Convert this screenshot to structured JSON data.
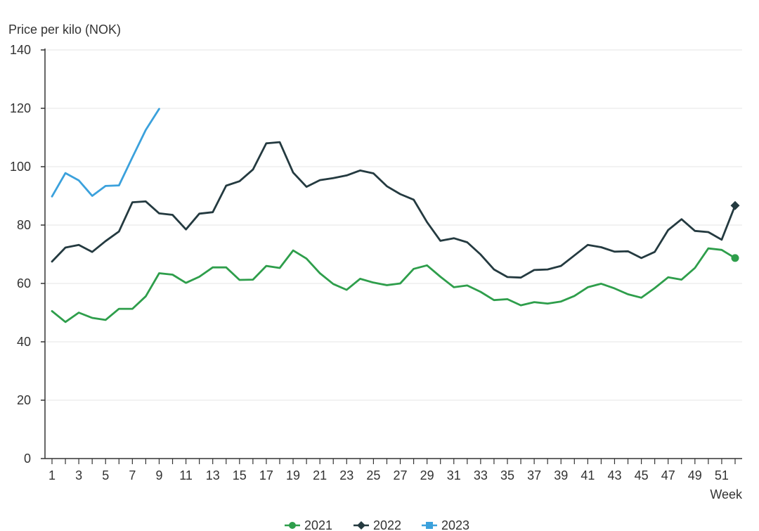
{
  "chart_data": {
    "type": "line",
    "ylabel": "Price per kilo (NOK)",
    "xlabel": "Week",
    "ylim": [
      0,
      140
    ],
    "xlim": [
      1,
      52
    ],
    "yticks": [
      0,
      20,
      40,
      60,
      80,
      100,
      120,
      140
    ],
    "xticks": [
      1,
      3,
      5,
      7,
      9,
      11,
      13,
      15,
      17,
      19,
      21,
      23,
      25,
      27,
      29,
      31,
      33,
      35,
      37,
      39,
      41,
      43,
      45,
      47,
      49,
      51
    ],
    "grid": "horizontal",
    "legend_position": "bottom-center",
    "series": [
      {
        "name": "2021",
        "color": "#2e9e4b",
        "marker": "circle",
        "x": [
          1,
          2,
          3,
          4,
          5,
          6,
          7,
          8,
          9,
          10,
          11,
          12,
          13,
          14,
          15,
          16,
          17,
          18,
          19,
          20,
          21,
          22,
          23,
          24,
          25,
          26,
          27,
          28,
          29,
          30,
          31,
          32,
          33,
          34,
          35,
          36,
          37,
          38,
          39,
          40,
          41,
          42,
          43,
          44,
          45,
          46,
          47,
          48,
          49,
          50,
          51,
          52
        ],
        "values": [
          50.5,
          46.8,
          50.0,
          48.2,
          47.5,
          51.3,
          51.3,
          55.6,
          63.5,
          63.0,
          60.2,
          62.3,
          65.5,
          65.5,
          61.2,
          61.3,
          66.0,
          65.3,
          71.3,
          68.5,
          63.5,
          59.8,
          57.8,
          61.6,
          60.3,
          59.4,
          60.0,
          65.0,
          66.2,
          62.3,
          58.7,
          59.3,
          57.1,
          54.3,
          54.6,
          52.5,
          53.6,
          53.1,
          53.8,
          55.7,
          58.7,
          59.9,
          58.3,
          56.3,
          55.1,
          58.4,
          62.1,
          61.3,
          65.3,
          72.0,
          71.5,
          68.7
        ]
      },
      {
        "name": "2022",
        "color": "#243a40",
        "marker": "diamond",
        "x": [
          1,
          2,
          3,
          4,
          5,
          6,
          7,
          8,
          9,
          10,
          11,
          12,
          13,
          14,
          15,
          16,
          17,
          18,
          19,
          20,
          21,
          22,
          23,
          24,
          25,
          26,
          27,
          28,
          29,
          30,
          31,
          32,
          33,
          34,
          35,
          36,
          37,
          38,
          39,
          40,
          41,
          42,
          43,
          44,
          45,
          46,
          47,
          48,
          49,
          50,
          51,
          52
        ],
        "values": [
          67.5,
          72.3,
          73.2,
          70.8,
          74.5,
          77.8,
          87.8,
          88.1,
          84.0,
          83.5,
          78.5,
          83.9,
          84.4,
          93.5,
          95.0,
          99.0,
          108.0,
          108.4,
          98.0,
          93.1,
          95.4,
          96.1,
          97.0,
          98.7,
          97.7,
          93.3,
          90.6,
          88.7,
          81.0,
          74.6,
          75.5,
          74.1,
          69.9,
          64.8,
          62.2,
          62.0,
          64.6,
          64.8,
          66.0,
          69.6,
          73.2,
          72.4,
          70.9,
          71.0,
          68.7,
          70.8,
          78.3,
          82.0,
          78.0,
          77.6,
          75.0,
          86.7
        ]
      },
      {
        "name": "2023",
        "color": "#3ba1dc",
        "marker": "square",
        "x": [
          1,
          2,
          3,
          4,
          5,
          6,
          7,
          8,
          9
        ],
        "values": [
          89.8,
          97.8,
          95.3,
          90.0,
          93.4,
          93.6,
          103.2,
          112.6,
          119.8
        ]
      }
    ]
  }
}
